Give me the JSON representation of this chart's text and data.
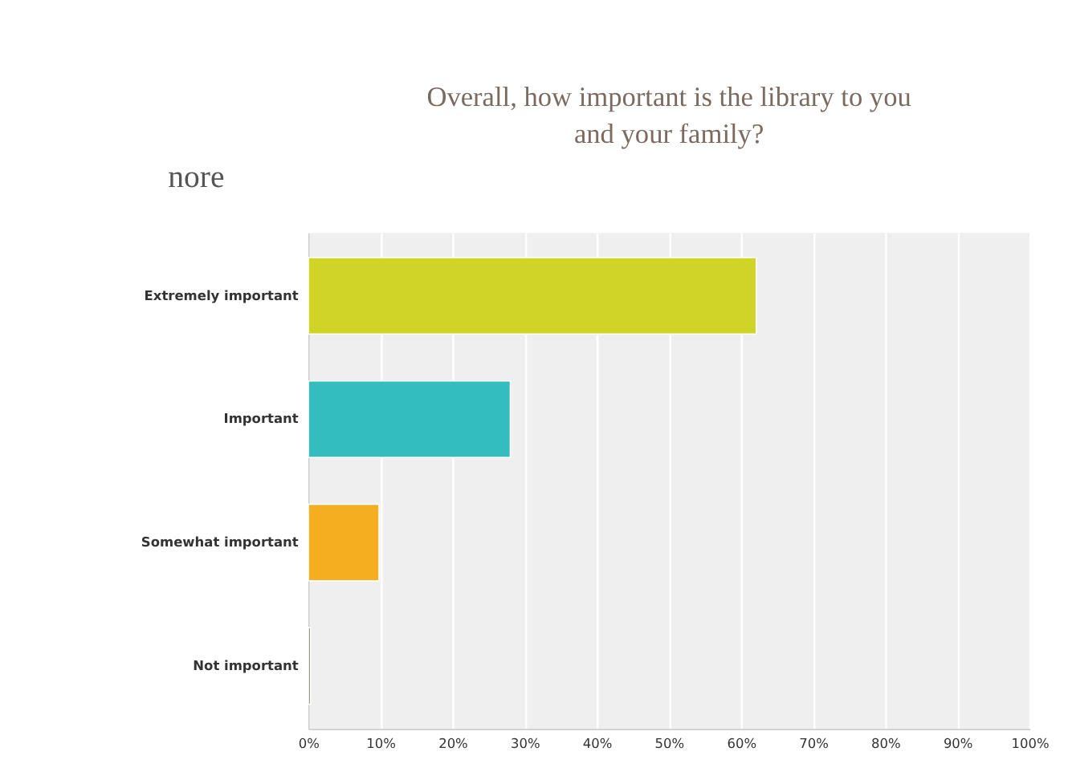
{
  "chart_data": {
    "type": "bar",
    "orientation": "horizontal",
    "title": "Overall, how important is the library to you and your family?",
    "categories": [
      "Extremely important",
      "Important",
      "Somewhat important",
      "Not important"
    ],
    "values": [
      62.1,
      28.0,
      9.8,
      0.3
    ],
    "colors": [
      "#cfd427",
      "#33bdbe",
      "#f5ae1f",
      "#8a8a7a"
    ],
    "xlim": [
      0,
      100
    ],
    "xticks": [
      {
        "value": 0,
        "label": "0%"
      },
      {
        "value": 10,
        "label": "10%"
      },
      {
        "value": 20,
        "label": "20%"
      },
      {
        "value": 30,
        "label": "30%"
      },
      {
        "value": 40,
        "label": "40%"
      },
      {
        "value": 50,
        "label": "50%"
      },
      {
        "value": 60,
        "label": "60%"
      },
      {
        "value": 70,
        "label": "70%"
      },
      {
        "value": 80,
        "label": "80%"
      },
      {
        "value": 90,
        "label": "90%"
      },
      {
        "value": 100,
        "label": "100%"
      }
    ],
    "grid": "x",
    "annotations": [
      "nore"
    ]
  }
}
